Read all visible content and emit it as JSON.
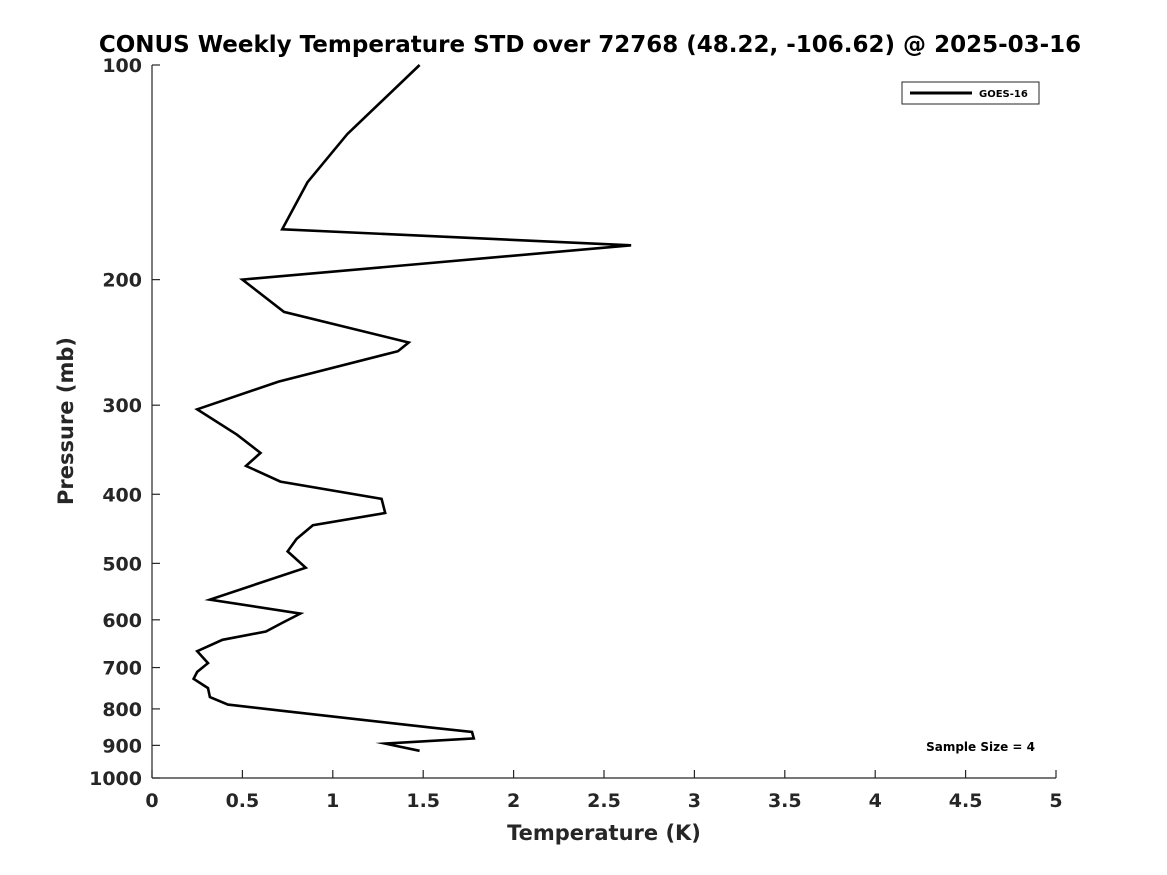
{
  "chart_data": {
    "type": "line",
    "title": "CONUS Weekly Temperature STD over 72768 (48.22, -106.62) @ 2025-03-16",
    "xlabel": "Temperature (K)",
    "ylabel": "Pressure (mb)",
    "xlim": [
      0,
      5
    ],
    "ylim": [
      100,
      1000
    ],
    "y_scale": "log",
    "y_inverted": true,
    "x_ticks": [
      "0",
      "0.5",
      "1",
      "1.5",
      "2",
      "2.5",
      "3",
      "3.5",
      "4",
      "4.5",
      "5"
    ],
    "y_ticks": [
      "100",
      "200",
      "300",
      "400",
      "500",
      "600",
      "700",
      "800",
      "900",
      "1000"
    ],
    "grid": false,
    "legend_position": "top-right",
    "annotation": "Sample Size = 4",
    "series": [
      {
        "name": "GOES-16",
        "color": "#000000",
        "points": [
          {
            "x": 1.48,
            "p": 100
          },
          {
            "x": 1.08,
            "p": 125
          },
          {
            "x": 0.86,
            "p": 146
          },
          {
            "x": 0.72,
            "p": 170
          },
          {
            "x": 2.65,
            "p": 179
          },
          {
            "x": 0.5,
            "p": 200
          },
          {
            "x": 0.73,
            "p": 222
          },
          {
            "x": 1.42,
            "p": 245
          },
          {
            "x": 1.36,
            "p": 252
          },
          {
            "x": 0.7,
            "p": 278
          },
          {
            "x": 0.25,
            "p": 304
          },
          {
            "x": 0.47,
            "p": 330
          },
          {
            "x": 0.6,
            "p": 350
          },
          {
            "x": 0.52,
            "p": 365
          },
          {
            "x": 0.71,
            "p": 384
          },
          {
            "x": 1.27,
            "p": 406
          },
          {
            "x": 1.29,
            "p": 425
          },
          {
            "x": 0.89,
            "p": 442
          },
          {
            "x": 0.8,
            "p": 462
          },
          {
            "x": 0.75,
            "p": 481
          },
          {
            "x": 0.85,
            "p": 507
          },
          {
            "x": 0.32,
            "p": 562
          },
          {
            "x": 0.82,
            "p": 588
          },
          {
            "x": 0.72,
            "p": 606
          },
          {
            "x": 0.63,
            "p": 623
          },
          {
            "x": 0.39,
            "p": 640
          },
          {
            "x": 0.25,
            "p": 664
          },
          {
            "x": 0.31,
            "p": 690
          },
          {
            "x": 0.25,
            "p": 710
          },
          {
            "x": 0.23,
            "p": 726
          },
          {
            "x": 0.31,
            "p": 748
          },
          {
            "x": 0.32,
            "p": 770
          },
          {
            "x": 0.42,
            "p": 789
          },
          {
            "x": 0.72,
            "p": 805
          },
          {
            "x": 1.55,
            "p": 850
          },
          {
            "x": 1.77,
            "p": 862
          },
          {
            "x": 1.78,
            "p": 880
          },
          {
            "x": 1.29,
            "p": 895
          },
          {
            "x": 1.48,
            "p": 916
          }
        ]
      }
    ]
  }
}
